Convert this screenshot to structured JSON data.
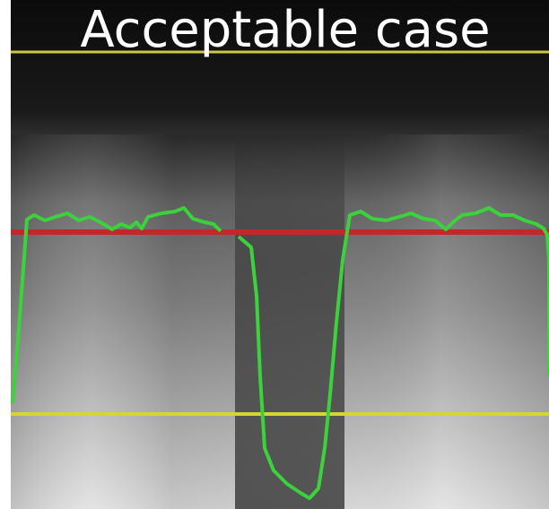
{
  "title": "Acceptable case"
}
